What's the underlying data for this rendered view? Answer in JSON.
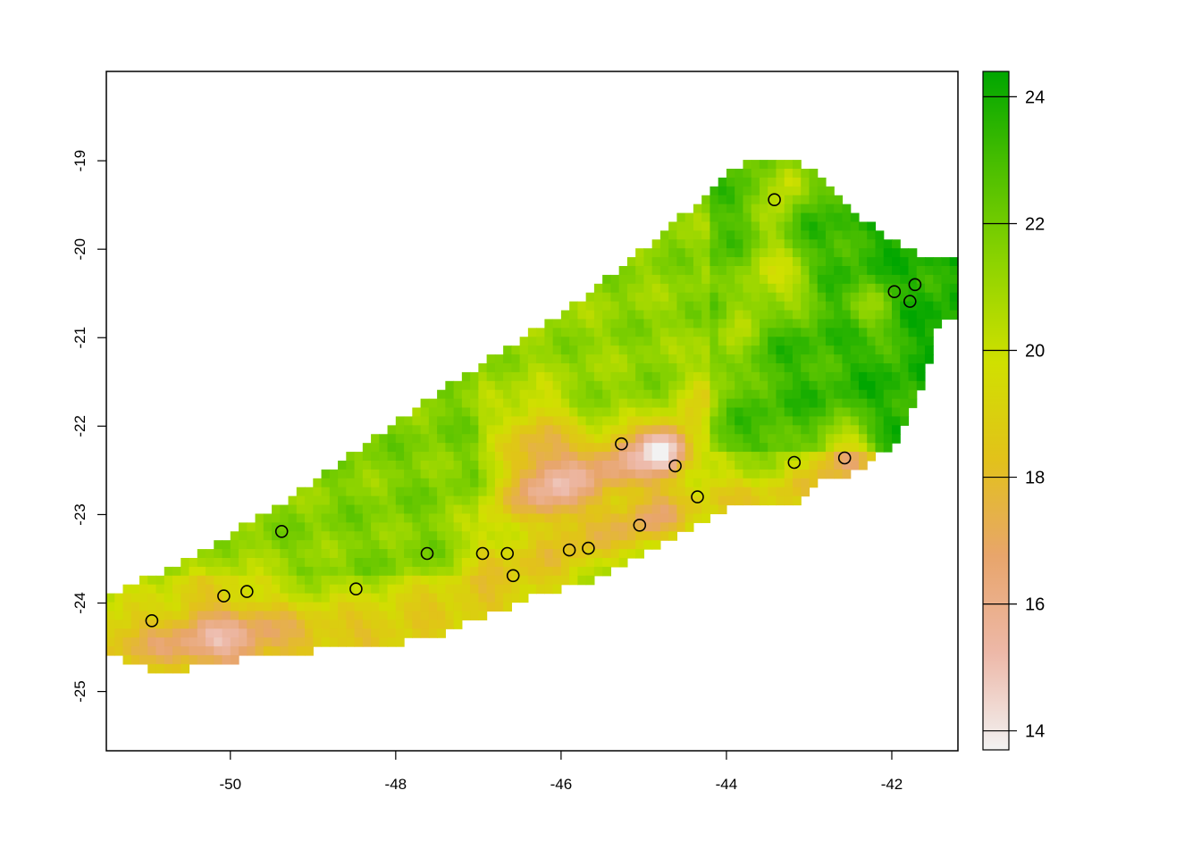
{
  "chart_data": {
    "type": "heatmap",
    "title": "",
    "xlabel": "",
    "ylabel": "",
    "xlim": [
      -51.5,
      -41.2
    ],
    "ylim": [
      -25.67,
      -17.99
    ],
    "x_ticks": [
      "-50",
      "-48",
      "-46",
      "-44",
      "-42"
    ],
    "y_ticks": [
      "-19",
      "-20",
      "-21",
      "-22",
      "-23",
      "-24",
      "-25"
    ],
    "legend": {
      "range": [
        13.7,
        24.4
      ],
      "ticks": [
        "14",
        "16",
        "18",
        "20",
        "22",
        "24"
      ],
      "colors": [
        "#f2f2f2",
        "#edb8a8",
        "#e8a56b",
        "#e2c21a",
        "#d0e000",
        "#8fd400",
        "#4cbf00",
        "#00a600"
      ]
    },
    "points": [
      {
        "lon": -50.95,
        "lat": -24.2
      },
      {
        "lon": -50.08,
        "lat": -23.92
      },
      {
        "lon": -49.8,
        "lat": -23.87
      },
      {
        "lon": -49.38,
        "lat": -23.19
      },
      {
        "lon": -48.48,
        "lat": -23.84
      },
      {
        "lon": -47.62,
        "lat": -23.44
      },
      {
        "lon": -46.95,
        "lat": -23.44
      },
      {
        "lon": -46.65,
        "lat": -23.44
      },
      {
        "lon": -46.58,
        "lat": -23.69
      },
      {
        "lon": -45.9,
        "lat": -23.4
      },
      {
        "lon": -45.67,
        "lat": -23.38
      },
      {
        "lon": -45.05,
        "lat": -23.12
      },
      {
        "lon": -45.27,
        "lat": -22.2
      },
      {
        "lon": -44.62,
        "lat": -22.45
      },
      {
        "lon": -44.35,
        "lat": -22.8
      },
      {
        "lon": -43.42,
        "lat": -19.44
      },
      {
        "lon": -43.18,
        "lat": -22.41
      },
      {
        "lon": -42.57,
        "lat": -22.36
      },
      {
        "lon": -41.97,
        "lat": -20.48
      },
      {
        "lon": -41.72,
        "lat": -20.4
      },
      {
        "lon": -41.78,
        "lat": -20.59
      }
    ]
  }
}
